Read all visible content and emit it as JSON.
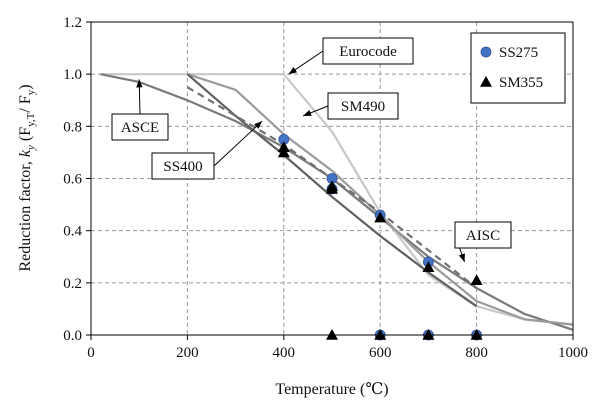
{
  "chart_data": {
    "type": "line",
    "xlabel": "Temperature (℃)",
    "ylabel": "Reduction factor, k_y (F_y,T / F_y)",
    "ylabel_parts": {
      "prefix": "Reduction factor, ",
      "k": "k",
      "k_sub": "y",
      "open": " (F",
      "f1_sub": "y,T",
      "mid": "/ F",
      "f2_sub": "y",
      "close": ")"
    },
    "xlim": [
      0,
      1000
    ],
    "ylim": [
      0,
      1.2
    ],
    "x_ticks": [
      "0",
      "200",
      "400",
      "600",
      "800",
      "1000"
    ],
    "y_ticks": [
      "0.0",
      "0.2",
      "0.4",
      "0.6",
      "0.8",
      "1.0",
      "1.2"
    ],
    "grid": true,
    "legend_position": "top-right",
    "series": [
      {
        "name": "Eurocode",
        "style": "line",
        "color": "#c8c8c8",
        "x": [
          20,
          400,
          500,
          600,
          700,
          800,
          900,
          1000
        ],
        "y": [
          1.0,
          1.0,
          0.78,
          0.47,
          0.23,
          0.11,
          0.06,
          0.04
        ]
      },
      {
        "name": "ASCE",
        "style": "line",
        "color": "#7a7a7a",
        "x": [
          20,
          100,
          200,
          300,
          400,
          500,
          600,
          700,
          800,
          900,
          1000
        ],
        "y": [
          1.0,
          0.97,
          0.9,
          0.82,
          0.72,
          0.6,
          0.45,
          0.3,
          0.18,
          0.08,
          0.02
        ]
      },
      {
        "name": "AISC",
        "style": "line",
        "color": "#9a9a9a",
        "x": [
          200,
          300,
          400,
          500,
          600,
          700,
          800,
          900,
          1000
        ],
        "y": [
          1.0,
          0.94,
          0.77,
          0.63,
          0.46,
          0.28,
          0.13,
          0.06,
          0.04
        ]
      },
      {
        "name": "SS400",
        "style": "line",
        "color": "#606060",
        "x": [
          200,
          300,
          400,
          500,
          600,
          700,
          800
        ],
        "y": [
          1.0,
          0.84,
          0.69,
          0.53,
          0.38,
          0.24,
          0.11
        ]
      },
      {
        "name": "SM490",
        "style": "dashed",
        "color": "#707070",
        "x": [
          200,
          400,
          600,
          800
        ],
        "y": [
          0.95,
          0.73,
          0.47,
          0.18
        ]
      },
      {
        "name": "SS275",
        "style": "marker-circle",
        "color": "#4472c4",
        "x": [
          400,
          500,
          500,
          600,
          600,
          700,
          700,
          800
        ],
        "y": [
          0.75,
          0.6,
          0.56,
          0.46,
          0.0,
          0.28,
          0.0,
          0.0
        ]
      },
      {
        "name": "SM355",
        "style": "marker-triangle",
        "color": "#000000",
        "x": [
          400,
          400,
          500,
          500,
          500,
          600,
          600,
          700,
          700,
          800,
          800
        ],
        "y": [
          0.72,
          0.7,
          0.57,
          0.56,
          0.0,
          0.45,
          0.0,
          0.26,
          0.0,
          0.21,
          0.0
        ]
      }
    ],
    "callouts": [
      {
        "label": "Eurocode",
        "target": [
          410,
          1.0
        ]
      },
      {
        "label": "ASCE",
        "target": [
          100,
          0.98
        ]
      },
      {
        "label": "SM490",
        "target": [
          440,
          0.84
        ]
      },
      {
        "label": "SS400",
        "target": [
          355,
          0.82
        ]
      },
      {
        "label": "AISC",
        "target": [
          775,
          0.28
        ]
      }
    ],
    "legend": [
      {
        "label": "SS275",
        "marker": "circle",
        "color": "#4472c4"
      },
      {
        "label": "SM355",
        "marker": "triangle",
        "color": "#000000"
      }
    ]
  }
}
